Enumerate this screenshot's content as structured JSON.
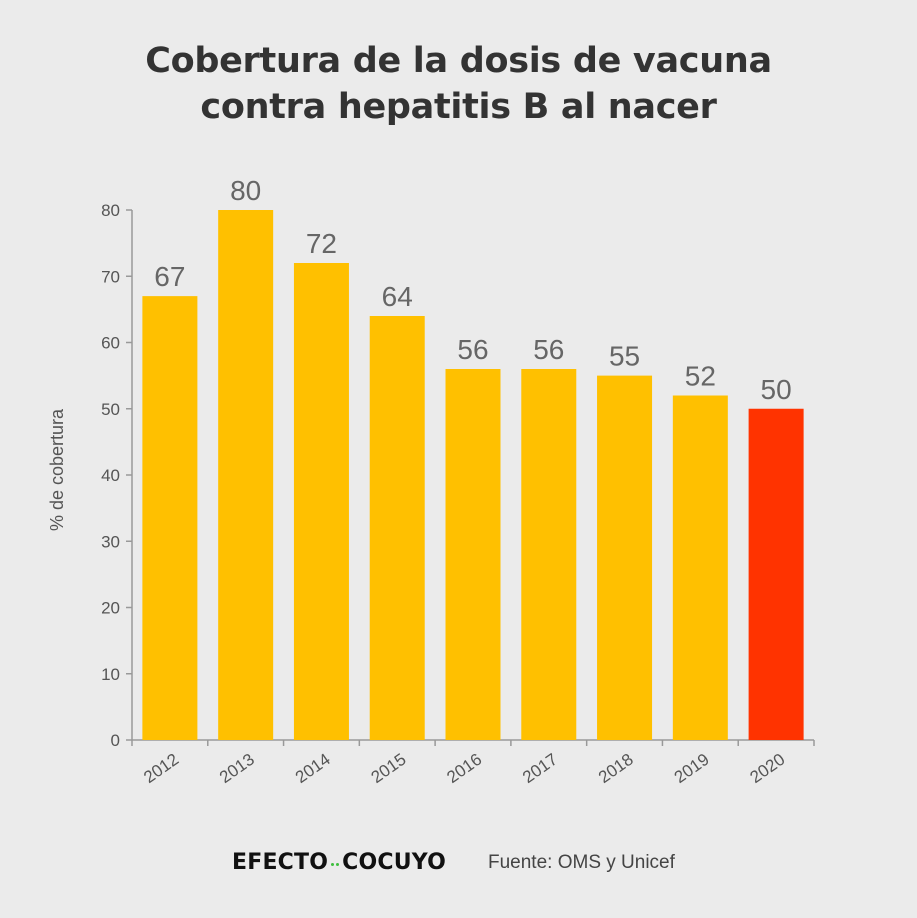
{
  "chart_data": {
    "type": "bar",
    "title_lines": [
      "Cobertura de la dosis de vacuna",
      "contra hepatitis B al nacer"
    ],
    "ylabel": "% de cobertura",
    "xlabel": "",
    "ylim": [
      0,
      80
    ],
    "yticks": [
      0,
      10,
      20,
      30,
      40,
      50,
      60,
      70,
      80
    ],
    "categories": [
      "2012",
      "2013",
      "2014",
      "2015",
      "2016",
      "2017",
      "2018",
      "2019",
      "2020"
    ],
    "values": [
      67,
      80,
      72,
      64,
      56,
      56,
      55,
      52,
      50
    ],
    "data_labels": [
      "67",
      "80",
      "72",
      "64",
      "56",
      "56",
      "55",
      "52",
      "50"
    ],
    "bar_color": "#ffc000",
    "highlight_color": "#ff3300",
    "highlight_category": "2020",
    "label_color": "#666666",
    "axis_color": "#999999",
    "grid": false
  },
  "footer": {
    "logo_left": "EFECTO",
    "logo_right": "COCUYO",
    "logo_dot_color": "#3fbf3f",
    "source": "Fuente: OMS y Unicef"
  }
}
